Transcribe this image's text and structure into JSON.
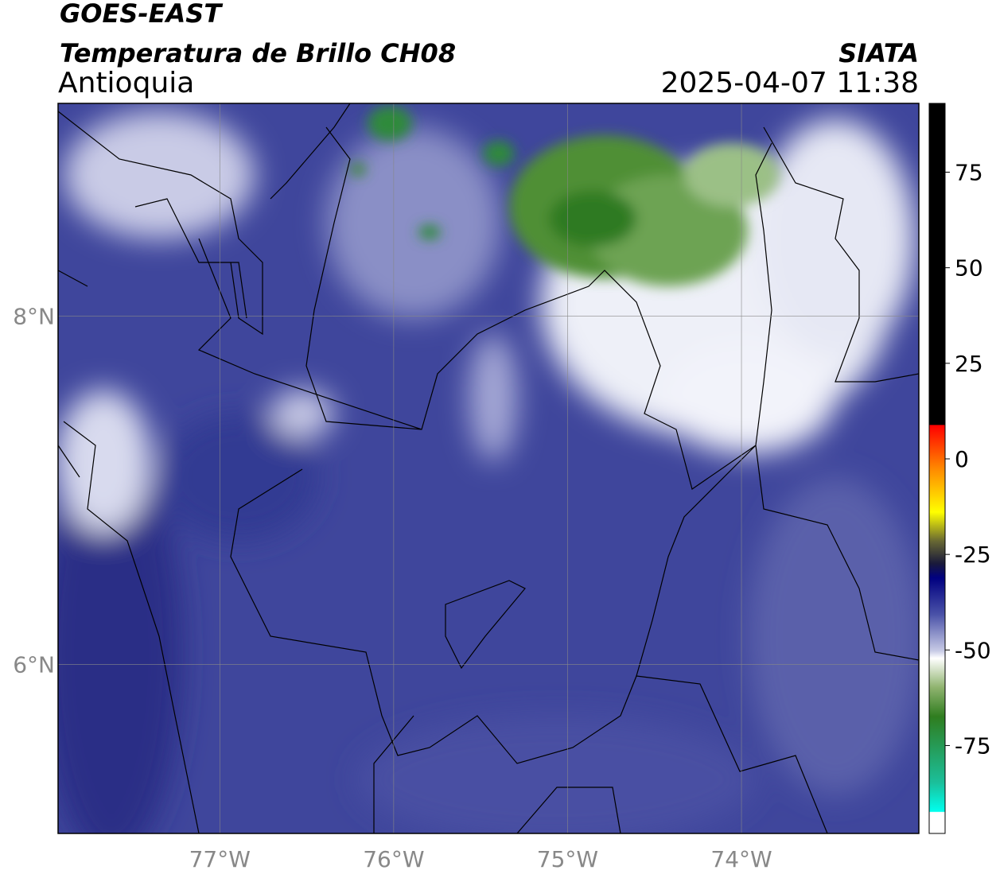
{
  "header": {
    "satellite": "GOES-EAST",
    "product": "Temperatura de Brillo CH08",
    "region": "Antioquia",
    "source": "SIATA",
    "timestamp": "2025-04-07 11:38"
  },
  "map": {
    "xlim": [
      -77.93,
      -72.98
    ],
    "ylim": [
      5.03,
      9.22
    ],
    "xticks": [
      {
        "value": -77,
        "label": "77°W"
      },
      {
        "value": -76,
        "label": "76°W"
      },
      {
        "value": -75,
        "label": "75°W"
      },
      {
        "value": -74,
        "label": "74°W"
      }
    ],
    "yticks": [
      {
        "value": 8,
        "label": "8°N"
      },
      {
        "value": 6,
        "label": "6°N"
      }
    ],
    "grid": true
  },
  "colorbar": {
    "lim": [
      -98,
      93
    ],
    "ticks": [
      75,
      50,
      25,
      0,
      -25,
      -50,
      -75
    ]
  }
}
